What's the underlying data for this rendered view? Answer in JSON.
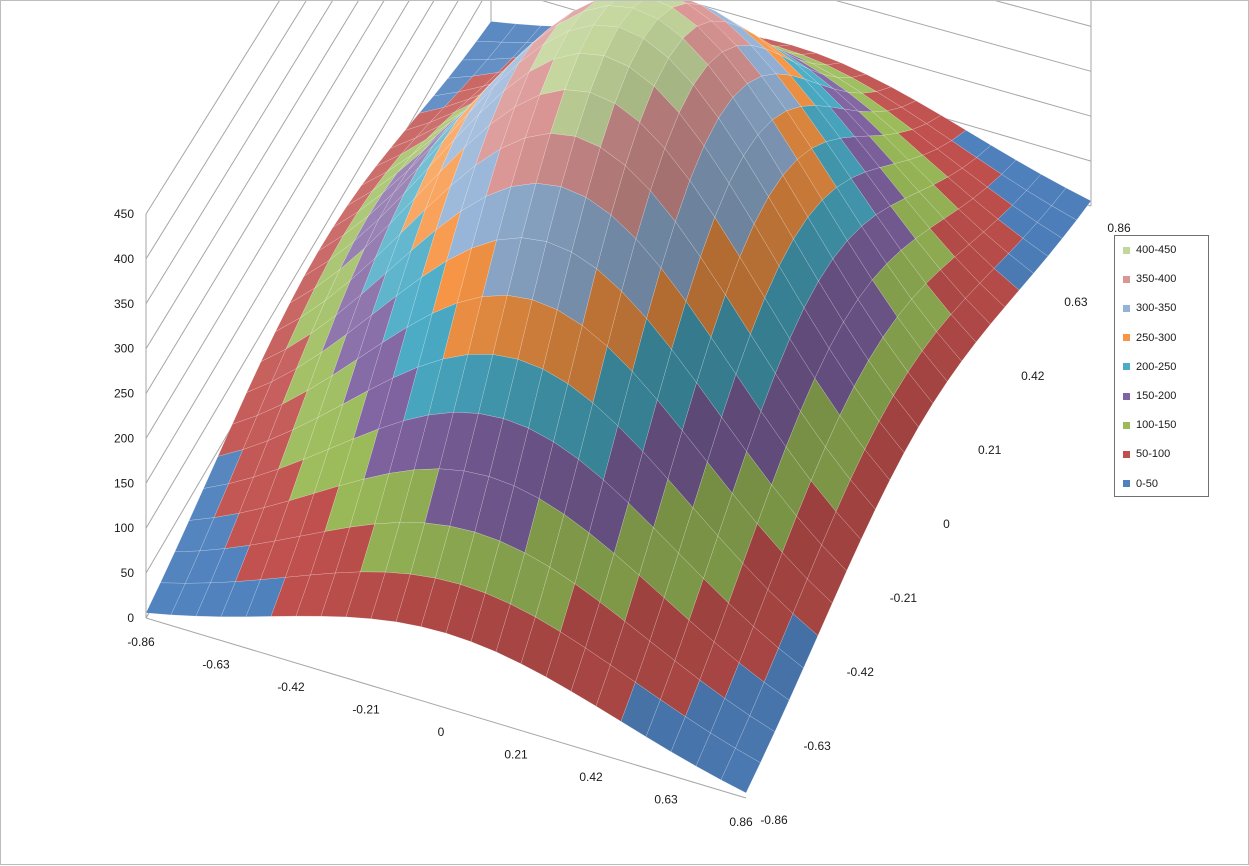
{
  "chart_data": {
    "type": "surface",
    "title": "",
    "z_axis": {
      "min": 0,
      "max": 450,
      "major_unit": 50,
      "tick_labels": [
        "0",
        "50",
        "100",
        "150",
        "200",
        "250",
        "300",
        "350",
        "400",
        "450"
      ]
    },
    "x_axis": {
      "tick_labels": [
        "-0.86",
        "-0.63",
        "-0.42",
        "-0.21",
        "0",
        "0.21",
        "0.42",
        "0.63",
        "0.86"
      ]
    },
    "y_axis": {
      "tick_labels": [
        "-0.86",
        "-0.63",
        "-0.42",
        "-0.21",
        "0",
        "0.21",
        "0.42",
        "0.63",
        "0.86"
      ]
    },
    "grid": true,
    "legend_position": "right",
    "bands": [
      {
        "label": "0-50",
        "min": 0,
        "max": 50,
        "color": "#4f81bd"
      },
      {
        "label": "50-100",
        "min": 50,
        "max": 100,
        "color": "#c0504d"
      },
      {
        "label": "100-150",
        "min": 100,
        "max": 150,
        "color": "#9bbb59"
      },
      {
        "label": "150-200",
        "min": 150,
        "max": 200,
        "color": "#8064a2"
      },
      {
        "label": "200-250",
        "min": 200,
        "max": 250,
        "color": "#4bacc6"
      },
      {
        "label": "250-300",
        "min": 250,
        "max": 300,
        "color": "#f79646"
      },
      {
        "label": "300-350",
        "min": 300,
        "max": 350,
        "color": "#95b3d7"
      },
      {
        "label": "350-400",
        "min": 350,
        "max": 400,
        "color": "#da9694"
      },
      {
        "label": "400-450",
        "min": 400,
        "max": 450,
        "color": "#c3d69b"
      }
    ]
  }
}
